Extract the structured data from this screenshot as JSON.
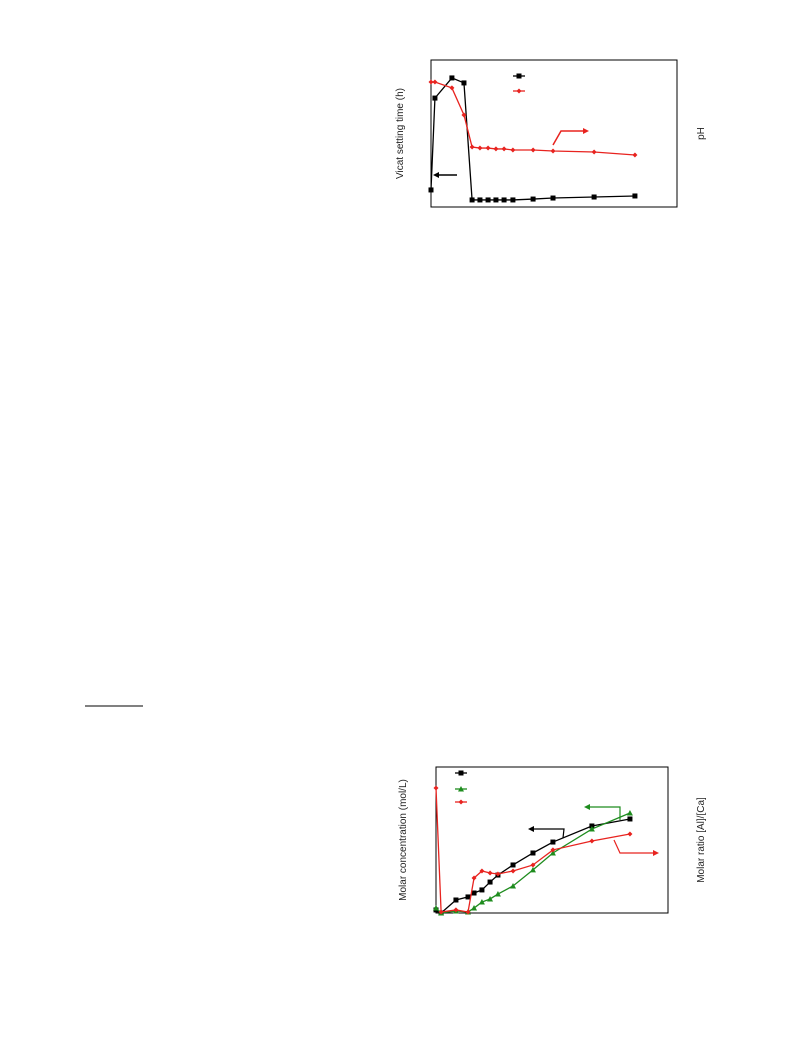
{
  "chart_data": [
    {
      "type": "line",
      "y_label": "Vicat setting time (h)",
      "y2_label": "pH",
      "xlim": [
        0,
        100
      ],
      "ylim": [
        0,
        100
      ],
      "y2lim": [
        0,
        100
      ],
      "x": [
        0,
        1.6,
        8.5,
        13.4,
        16.7,
        19.9,
        23.2,
        26.4,
        29.7,
        33.3,
        41.5,
        49.6,
        66.3,
        82.9
      ],
      "series": [
        {
          "color": "#000000",
          "marker": "square",
          "axis": "y",
          "values": [
            11.6,
            74.1,
            87.8,
            84.4,
            4.8,
            4.8,
            4.8,
            4.8,
            4.8,
            4.8,
            5.4,
            6.1,
            6.8,
            7.5
          ]
        },
        {
          "color": "#e8231f",
          "marker": "diamond",
          "axis": "y2",
          "values": [
            85.0,
            85.0,
            81.0,
            62.6,
            40.8,
            40.1,
            40.1,
            39.5,
            39.5,
            38.8,
            38.8,
            38.1,
            37.4,
            35.4
          ]
        }
      ]
    },
    {
      "type": "line",
      "y_label": "Molar concentration (mol/L)",
      "y2_label": "Molar ratio [Al]/[Ca]",
      "xlim": [
        0,
        100
      ],
      "ylim": [
        0,
        100
      ],
      "y2lim": [
        0,
        100
      ],
      "x": [
        0,
        2.2,
        8.6,
        13.8,
        16.4,
        19.8,
        23.3,
        26.7,
        33.2,
        41.8,
        50.4,
        67.2,
        83.6
      ],
      "series": [
        {
          "color": "#000000",
          "marker": "square",
          "axis": "y",
          "values": [
            2.1,
            0,
            8.9,
            11.0,
            13.7,
            15.8,
            21.2,
            26.0,
            32.9,
            41.1,
            48.6,
            59.6,
            64.4
          ]
        },
        {
          "color": "#1e8c1e",
          "marker": "triangle",
          "axis": "y",
          "values": [
            3.4,
            0,
            1.4,
            0.7,
            3.4,
            7.5,
            9.6,
            13.0,
            18.5,
            29.5,
            41.1,
            57.5,
            68.5
          ]
        },
        {
          "color": "#e8231f",
          "marker": "diamond",
          "axis": "y2",
          "values": [
            85.6,
            0.7,
            2.1,
            0.7,
            24.0,
            28.8,
            27.4,
            26.7,
            28.8,
            32.9,
            43.2,
            49.3,
            54.1
          ]
        }
      ]
    }
  ]
}
